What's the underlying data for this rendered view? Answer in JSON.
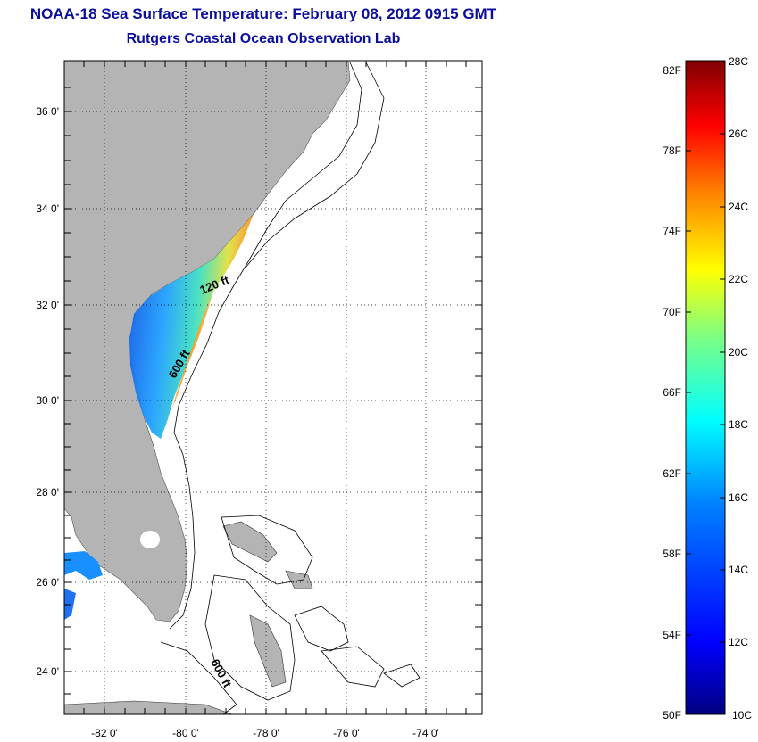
{
  "title": "NOAA-18 Sea Surface Temperature:  February 08, 2012 0915 GMT",
  "subtitle": "Rutgers Coastal Ocean Observation Lab",
  "map": {
    "lat_ticks": [
      "36 0'",
      "34 0'",
      "32 0'",
      "30 0'",
      "28 0'",
      "26 0'",
      "24 0'"
    ],
    "lon_ticks": [
      "-82 0'",
      "-80 0'",
      "-78 0'",
      "-76 0'",
      "-74 0'"
    ],
    "contour_labels": [
      "120 ft",
      "600 ft",
      "600 ft"
    ],
    "land_color": "#b4b4b4",
    "contour_color": "#000000",
    "grid": "dotted"
  },
  "colorbar": {
    "fahrenheit_labels": [
      "82F",
      "78F",
      "74F",
      "70F",
      "66F",
      "62F",
      "58F",
      "54F",
      "50F"
    ],
    "celsius_labels": [
      "28C",
      "26C",
      "24C",
      "22C",
      "20C",
      "18C",
      "16C",
      "14C",
      "12C",
      "10C"
    ],
    "colors": [
      "#800000",
      "#ff0000",
      "#ff8000",
      "#ffff00",
      "#80ff80",
      "#00ffff",
      "#0080ff",
      "#0000ff",
      "#000080"
    ]
  }
}
